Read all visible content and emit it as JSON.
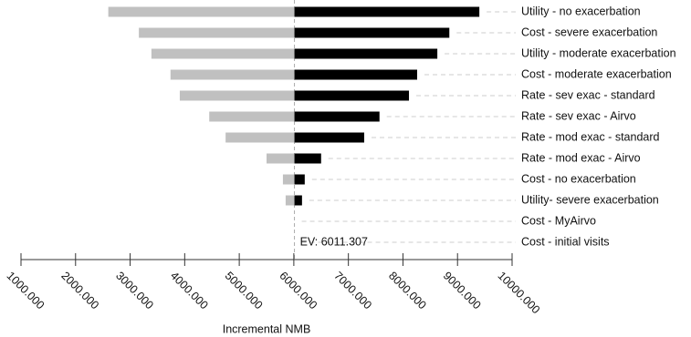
{
  "chart_data": {
    "type": "tornado",
    "categories": [
      "Utility - no exacerbation",
      "Cost - severe exacerbation",
      "Utility - moderate exacerbation",
      "Cost - moderate exacerbation",
      "Rate - sev exac - standard",
      "Rate - sev exac - Airvo",
      "Rate - mod exac - standard",
      "Rate - mod exac - Airvo",
      "Cost - no exacerbation",
      "Utility- severe exacerbation",
      "Cost - MyAirvo",
      "Cost - initial visits"
    ],
    "series": [
      {
        "color": "#c0c0c0",
        "values": [
          2600,
          3160,
          3390,
          3740,
          3910,
          4450,
          4750,
          5500,
          5800,
          5850,
          6011.307,
          6011.307
        ]
      },
      {
        "color": "#000000",
        "values": [
          9400,
          8850,
          8630,
          8260,
          8110,
          7570,
          7290,
          6500,
          6200,
          6150,
          6011.307,
          6011.307
        ]
      }
    ],
    "ev": 6011.307,
    "ev_label": "EV: 6011.307",
    "xlabel": "Incremental NMB",
    "xlim": [
      1000,
      10000
    ],
    "xticks": [
      {
        "value": 1000,
        "label": "1000.000"
      },
      {
        "value": 2000,
        "label": "2000.000"
      },
      {
        "value": 3000,
        "label": "3000.000"
      },
      {
        "value": 4000,
        "label": "4000.000"
      },
      {
        "value": 5000,
        "label": "5000.000"
      },
      {
        "value": 6000,
        "label": "6000.000"
      },
      {
        "value": 7000,
        "label": "7000.000"
      },
      {
        "value": 8000,
        "label": "8000.000"
      },
      {
        "value": 9000,
        "label": "9000.000"
      },
      {
        "value": 10000,
        "label": "10000.000"
      }
    ]
  }
}
